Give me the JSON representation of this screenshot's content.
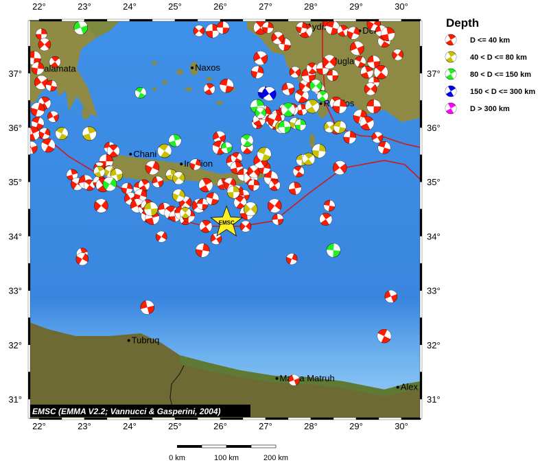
{
  "map": {
    "lon_range": [
      21.8,
      30.4
    ],
    "lat_range": [
      30.7,
      38.0
    ],
    "lon_ticks": [
      "22°",
      "23°",
      "24°",
      "25°",
      "26°",
      "27°",
      "28°",
      "29°",
      "30°"
    ],
    "lat_ticks": [
      "31°",
      "32°",
      "33°",
      "34°",
      "35°",
      "36°",
      "37°"
    ],
    "credit": "EMSC (EMMA V2.2; Vannucci & Gasperini, 2004)",
    "colors": {
      "sea": "#3d8ee6",
      "land": "#8c8a45",
      "africa": "#6e6a33",
      "plate_boundary": "#d01818"
    },
    "epicenter": {
      "label": "EMSC",
      "lon": 26.14,
      "lat": 34.25,
      "color": "#ffee22"
    },
    "cities": [
      {
        "name": "alamata",
        "lon": 22.05,
        "lat": 37.08
      },
      {
        "name": "Naxos",
        "lon": 25.38,
        "lat": 37.1
      },
      {
        "name": "Chani",
        "lon": 24.02,
        "lat": 35.51
      },
      {
        "name": "Iraklion",
        "lon": 25.14,
        "lat": 35.33
      },
      {
        "name": "Aydın",
        "lon": 27.84,
        "lat": 37.85
      },
      {
        "name": "Denizli",
        "lon": 29.08,
        "lat": 37.78
      },
      {
        "name": "Mugla",
        "lon": 28.36,
        "lat": 37.22
      },
      {
        "name": "Rhodos",
        "lon": 28.22,
        "lat": 36.44
      },
      {
        "name": "Tubruq",
        "lon": 23.98,
        "lat": 32.08
      },
      {
        "name": "Marsa Matruh",
        "lon": 27.25,
        "lat": 31.38
      },
      {
        "name": "Alex",
        "lon": 29.92,
        "lat": 31.22
      }
    ]
  },
  "legend": {
    "title": "Depth",
    "items": [
      {
        "label": "D <= 40 km",
        "color": "#ff1a00"
      },
      {
        "label": "40 < D <= 80 km",
        "color": "#c8c000"
      },
      {
        "label": "80 < D <= 150 km",
        "color": "#22ee22"
      },
      {
        "label": "150 < D <= 300 km",
        "color": "#0000ee"
      },
      {
        "label": "D > 300 km",
        "color": "#ff00ff"
      }
    ]
  },
  "scale_bar": {
    "labels": [
      "0 km",
      "100 km",
      "200 km"
    ]
  },
  "events": [
    [
      22.05,
      37.72,
      0
    ],
    [
      22.12,
      37.53,
      0
    ],
    [
      21.89,
      37.28,
      0
    ],
    [
      22.35,
      37.21,
      0
    ],
    [
      21.97,
      37.09,
      0
    ],
    [
      22.05,
      36.83,
      0
    ],
    [
      22.27,
      36.77,
      0
    ],
    [
      22.12,
      36.45,
      0
    ],
    [
      21.97,
      36.33,
      0
    ],
    [
      22.31,
      36.2,
      0
    ],
    [
      21.97,
      36.08,
      0
    ],
    [
      21.86,
      35.89,
      0
    ],
    [
      22.12,
      35.89,
      0
    ],
    [
      21.82,
      35.63,
      0
    ],
    [
      22.2,
      35.67,
      0
    ],
    [
      22.73,
      35.13,
      0
    ],
    [
      22.84,
      34.96,
      0
    ],
    [
      23.03,
      35.0,
      0
    ],
    [
      23.11,
      34.94,
      0
    ],
    [
      23.33,
      35.0,
      0
    ],
    [
      23.37,
      34.56,
      0
    ],
    [
      23.56,
      35.63,
      0
    ],
    [
      23.64,
      35.57,
      0
    ],
    [
      23.48,
      35.38,
      0
    ],
    [
      23.33,
      35.26,
      0
    ],
    [
      23.56,
      35.19,
      0
    ],
    [
      23.41,
      34.94,
      0
    ],
    [
      23.94,
      34.88,
      0
    ],
    [
      24.02,
      34.69,
      0
    ],
    [
      24.24,
      34.88,
      0
    ],
    [
      24.32,
      34.94,
      0
    ],
    [
      24.24,
      34.75,
      0
    ],
    [
      24.17,
      34.56,
      0
    ],
    [
      24.32,
      34.5,
      0
    ],
    [
      24.39,
      34.56,
      0
    ],
    [
      24.5,
      35.26,
      0
    ],
    [
      24.62,
      35.0,
      0
    ],
    [
      24.39,
      34.37,
      0
    ],
    [
      24.5,
      34.34,
      0
    ],
    [
      24.7,
      33.99,
      0
    ],
    [
      24.77,
      34.5,
      0
    ],
    [
      24.92,
      34.43,
      0
    ],
    [
      25.0,
      34.37,
      0
    ],
    [
      25.23,
      34.62,
      0
    ],
    [
      25.15,
      34.43,
      0
    ],
    [
      25.23,
      34.31,
      0
    ],
    [
      25.3,
      34.37,
      0
    ],
    [
      25.53,
      34.56,
      0
    ],
    [
      25.61,
      34.59,
      0
    ],
    [
      25.68,
      34.18,
      0
    ],
    [
      25.61,
      33.74,
      0
    ],
    [
      25.91,
      33.95,
      0
    ],
    [
      25.83,
      34.69,
      0
    ],
    [
      25.68,
      34.94,
      0
    ],
    [
      25.45,
      35.32,
      0
    ],
    [
      25.98,
      35.82,
      0
    ],
    [
      25.98,
      35.63,
      0
    ],
    [
      26.06,
      34.96,
      0
    ],
    [
      26.21,
      34.96,
      0
    ],
    [
      26.29,
      35.38,
      0
    ],
    [
      26.36,
      35.44,
      0
    ],
    [
      26.36,
      35.26,
      0
    ],
    [
      26.36,
      34.81,
      0
    ],
    [
      26.52,
      34.75,
      0
    ],
    [
      26.44,
      34.62,
      0
    ],
    [
      26.59,
      34.43,
      0
    ],
    [
      26.56,
      34.18,
      0
    ],
    [
      26.52,
      35.13,
      0
    ],
    [
      26.67,
      35.07,
      0
    ],
    [
      26.74,
      34.94,
      0
    ],
    [
      26.74,
      35.19,
      0
    ],
    [
      27.12,
      35.07,
      0
    ],
    [
      27.2,
      34.94,
      0
    ],
    [
      26.97,
      35.26,
      0
    ],
    [
      26.89,
      35.38,
      0
    ],
    [
      26.82,
      36.08,
      0
    ],
    [
      26.86,
      36.14,
      0
    ],
    [
      26.97,
      36.27,
      0
    ],
    [
      27.12,
      36.14,
      0
    ],
    [
      27.2,
      36.08,
      0
    ],
    [
      27.27,
      36.2,
      0
    ],
    [
      27.42,
      36.33,
      0
    ],
    [
      27.5,
      36.71,
      0
    ],
    [
      27.8,
      36.58,
      0
    ],
    [
      27.8,
      36.33,
      0
    ],
    [
      27.88,
      36.77,
      0
    ],
    [
      27.95,
      36.96,
      0
    ],
    [
      28.03,
      37.09,
      0
    ],
    [
      28.26,
      37.09,
      0
    ],
    [
      28.41,
      37.21,
      0
    ],
    [
      28.48,
      36.96,
      0
    ],
    [
      28.56,
      36.45,
      0
    ],
    [
      28.64,
      36.39,
      0
    ],
    [
      27.65,
      37.02,
      0
    ],
    [
      27.42,
      37.53,
      0
    ],
    [
      27.88,
      37.78,
      0
    ],
    [
      27.8,
      37.84,
      0
    ],
    [
      28.41,
      37.91,
      0
    ],
    [
      28.48,
      37.84,
      0
    ],
    [
      28.71,
      37.78,
      0
    ],
    [
      28.94,
      37.74,
      0
    ],
    [
      29.02,
      37.46,
      0
    ],
    [
      29.09,
      37.21,
      0
    ],
    [
      29.24,
      37.02,
      0
    ],
    [
      29.39,
      37.91,
      0
    ],
    [
      29.55,
      37.78,
      0
    ],
    [
      29.62,
      37.59,
      0
    ],
    [
      29.7,
      37.72,
      0
    ],
    [
      29.92,
      37.34,
      0
    ],
    [
      29.39,
      37.21,
      0
    ],
    [
      29.55,
      37.02,
      0
    ],
    [
      29.39,
      36.83,
      0
    ],
    [
      29.32,
      36.71,
      0
    ],
    [
      29.39,
      36.39,
      0
    ],
    [
      28.56,
      35.98,
      0
    ],
    [
      28.86,
      35.82,
      0
    ],
    [
      28.64,
      35.26,
      0
    ],
    [
      28.41,
      34.56,
      0
    ],
    [
      28.33,
      34.31,
      0
    ],
    [
      29.09,
      36.2,
      0
    ],
    [
      29.47,
      35.82,
      0
    ],
    [
      29.62,
      35.63,
      0
    ],
    [
      29.24,
      36.08,
      0
    ],
    [
      27.58,
      33.58,
      0
    ],
    [
      29.77,
      32.89,
      0
    ],
    [
      29.62,
      32.16,
      0
    ],
    [
      22.95,
      33.68,
      0
    ],
    [
      22.95,
      33.58,
      0
    ],
    [
      24.39,
      32.69,
      0
    ],
    [
      27.73,
      35.19,
      0
    ],
    [
      27.65,
      34.88,
      0
    ],
    [
      27.2,
      34.56,
      0
    ],
    [
      27.27,
      34.31,
      0
    ],
    [
      26.59,
      35.63,
      0
    ],
    [
      25.83,
      37.78,
      0
    ],
    [
      25.53,
      37.78,
      0
    ],
    [
      26.06,
      37.84,
      0
    ],
    [
      26.89,
      37.84,
      0
    ],
    [
      27.05,
      37.84,
      0
    ],
    [
      27.27,
      37.65,
      0
    ],
    [
      26.14,
      36.77,
      0
    ],
    [
      25.76,
      36.71,
      0
    ],
    [
      26.82,
      37.02,
      0
    ],
    [
      26.89,
      37.28,
      0
    ],
    [
      28.18,
      36.71,
      0
    ],
    [
      27.58,
      36.33,
      0
    ],
    [
      27.2,
      36.14,
      0
    ],
    [
      27.63,
      31.35,
      0
    ],
    [
      22.5,
      35.89,
      1
    ],
    [
      23.11,
      35.89,
      1
    ],
    [
      23.56,
      35.19,
      1
    ],
    [
      23.71,
      35.13,
      1
    ],
    [
      24.77,
      35.57,
      1
    ],
    [
      24.92,
      35.13,
      1
    ],
    [
      25.08,
      35.07,
      1
    ],
    [
      24.47,
      34.5,
      1
    ],
    [
      25.23,
      34.43,
      1
    ],
    [
      26.29,
      34.81,
      1
    ],
    [
      26.67,
      34.5,
      1
    ],
    [
      27.8,
      35.4,
      1
    ],
    [
      27.95,
      35.42,
      1
    ],
    [
      28.18,
      35.57,
      1
    ],
    [
      28.41,
      36.01,
      1
    ],
    [
      28.64,
      36.01,
      1
    ],
    [
      28.03,
      36.39,
      1
    ],
    [
      27.65,
      36.08,
      1
    ],
    [
      27.35,
      36.01,
      1
    ],
    [
      26.97,
      35.51,
      1
    ],
    [
      23.33,
      35.19,
      1
    ],
    [
      25.08,
      34.75,
      1
    ],
    [
      22.92,
      37.84,
      2
    ],
    [
      24.24,
      36.64,
      2
    ],
    [
      25.0,
      35.76,
      2
    ],
    [
      23.56,
      34.96,
      2
    ],
    [
      26.14,
      35.63,
      2
    ],
    [
      26.59,
      35.76,
      2
    ],
    [
      26.82,
      36.39,
      2
    ],
    [
      26.89,
      36.27,
      2
    ],
    [
      27.42,
      36.01,
      2
    ],
    [
      27.5,
      36.33,
      2
    ],
    [
      27.77,
      36.05,
      2
    ],
    [
      28.11,
      36.77,
      2
    ],
    [
      28.5,
      33.74,
      2
    ],
    [
      28.26,
      36.58,
      2
    ],
    [
      26.97,
      36.64,
      3
    ],
    [
      27.08,
      36.62,
      3
    ]
  ]
}
